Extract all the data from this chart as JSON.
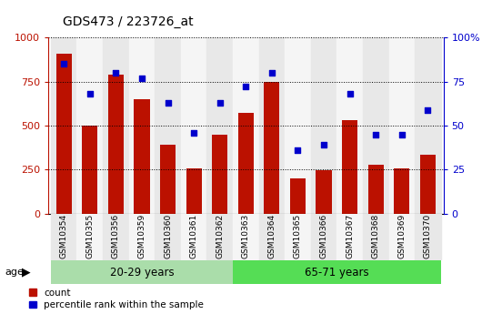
{
  "title": "GDS473 / 223726_at",
  "samples": [
    "GSM10354",
    "GSM10355",
    "GSM10356",
    "GSM10359",
    "GSM10360",
    "GSM10361",
    "GSM10362",
    "GSM10363",
    "GSM10364",
    "GSM10365",
    "GSM10366",
    "GSM10367",
    "GSM10368",
    "GSM10369",
    "GSM10370"
  ],
  "counts": [
    910,
    500,
    790,
    650,
    390,
    255,
    450,
    570,
    750,
    200,
    245,
    530,
    275,
    255,
    335
  ],
  "percentile": [
    85,
    68,
    80,
    77,
    63,
    46,
    63,
    72,
    80,
    36,
    39,
    68,
    45,
    45,
    59
  ],
  "group1_count": 7,
  "group2_count": 8,
  "group1_label": "20-29 years",
  "group2_label": "65-71 years",
  "age_label": "age",
  "bar_color": "#BB1100",
  "dot_color": "#0000CC",
  "group1_bg": "#AADDAA",
  "group2_bg": "#55DD55",
  "col_bg_even": "#E8E8E8",
  "col_bg_odd": "#F5F5F5",
  "ylim_left": [
    0,
    1000
  ],
  "ylim_right": [
    0,
    100
  ],
  "yticks_left": [
    0,
    250,
    500,
    750,
    1000
  ],
  "yticks_right": [
    0,
    25,
    50,
    75,
    100
  ],
  "ytick_labels_left": [
    "0",
    "250",
    "500",
    "750",
    "1000"
  ],
  "ytick_labels_right": [
    "0",
    "25",
    "50",
    "75",
    "100%"
  ],
  "legend_count_label": "count",
  "legend_pct_label": "percentile rank within the sample"
}
